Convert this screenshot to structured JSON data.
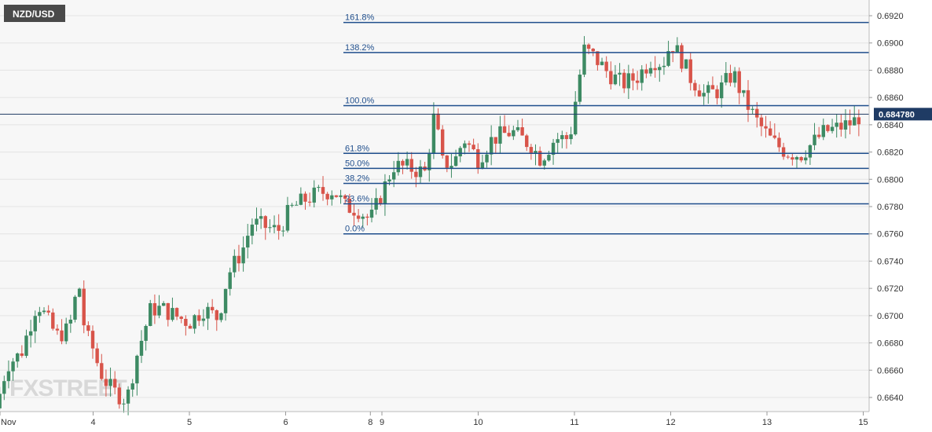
{
  "chart_data": {
    "type": "candlestick",
    "title": "NZD/USD",
    "current_price": "0.684780",
    "y_axis": {
      "ylim": [
        0.663,
        0.693
      ],
      "ticks": [
        "0.6640",
        "0.6660",
        "0.6680",
        "0.6700",
        "0.6720",
        "0.6740",
        "0.6760",
        "0.6780",
        "0.6800",
        "0.6820",
        "0.6840",
        "0.6860",
        "0.6880",
        "0.6900",
        "0.6920"
      ]
    },
    "x_axis": {
      "labels": [
        {
          "label": "Nov",
          "pos": 0.0
        },
        {
          "label": "4",
          "pos": 1.0
        },
        {
          "label": "5",
          "pos": 2.0
        },
        {
          "label": "6",
          "pos": 3.0
        },
        {
          "label": "8",
          "pos": 3.88
        },
        {
          "label": "9",
          "pos": 4.0
        },
        {
          "label": "10",
          "pos": 5.0
        },
        {
          "label": "11",
          "pos": 6.0
        },
        {
          "label": "12",
          "pos": 7.0
        },
        {
          "label": "13",
          "pos": 8.0
        },
        {
          "label": "15",
          "pos": 9.0
        }
      ]
    },
    "fibonacci": {
      "start_pos": 3.6,
      "levels": [
        {
          "label": "161.8%",
          "price": 0.6915
        },
        {
          "label": "138.2%",
          "price": 0.6893
        },
        {
          "label": "100.0%",
          "price": 0.6854
        },
        {
          "label": "61.8%",
          "price": 0.6819
        },
        {
          "label": "50.0%",
          "price": 0.6808
        },
        {
          "label": "38.2%",
          "price": 0.6797
        },
        {
          "label": "23.6%",
          "price": 0.6782
        },
        {
          "label": "0.0%",
          "price": 0.676
        }
      ]
    },
    "price_line": 0.68478,
    "colors": {
      "up": "#3d8a63",
      "down": "#d8544a",
      "fib": "#1f4e8c",
      "price_label_bg": "#1f3b64",
      "title_bg": "#4a4a4a"
    },
    "watermark": "FXSTREET",
    "anchors": [
      [
        0.0,
        0.6632
      ],
      [
        0.05,
        0.665
      ],
      [
        0.12,
        0.6665
      ],
      [
        0.25,
        0.6672
      ],
      [
        0.42,
        0.671
      ],
      [
        0.5,
        0.67
      ],
      [
        0.62,
        0.6685
      ],
      [
        0.75,
        0.669
      ],
      [
        0.85,
        0.6725
      ],
      [
        0.92,
        0.6685
      ],
      [
        0.98,
        0.668
      ],
      [
        1.02,
        0.667
      ],
      [
        1.1,
        0.6655
      ],
      [
        1.2,
        0.6645
      ],
      [
        1.35,
        0.6638
      ],
      [
        1.45,
        0.667
      ],
      [
        1.6,
        0.6705
      ],
      [
        1.72,
        0.6705
      ],
      [
        1.85,
        0.67
      ],
      [
        2.0,
        0.6695
      ],
      [
        2.15,
        0.6705
      ],
      [
        2.3,
        0.6698
      ],
      [
        2.4,
        0.673
      ],
      [
        2.55,
        0.6748
      ],
      [
        2.65,
        0.6768
      ],
      [
        2.8,
        0.6765
      ],
      [
        2.92,
        0.6762
      ],
      [
        3.05,
        0.6778
      ],
      [
        3.2,
        0.6785
      ],
      [
        3.35,
        0.679
      ],
      [
        3.5,
        0.6792
      ],
      [
        3.62,
        0.678
      ],
      [
        3.75,
        0.6778
      ],
      [
        3.88,
        0.677
      ],
      [
        4.0,
        0.679
      ],
      [
        4.12,
        0.681
      ],
      [
        4.3,
        0.6808
      ],
      [
        4.45,
        0.6805
      ],
      [
        4.55,
        0.685
      ],
      [
        4.62,
        0.6812
      ],
      [
        4.75,
        0.6812
      ],
      [
        4.85,
        0.683
      ],
      [
        5.0,
        0.6815
      ],
      [
        5.15,
        0.683
      ],
      [
        5.35,
        0.6835
      ],
      [
        5.55,
        0.6825
      ],
      [
        5.65,
        0.6815
      ],
      [
        5.8,
        0.683
      ],
      [
        5.95,
        0.683
      ],
      [
        6.02,
        0.6862
      ],
      [
        6.1,
        0.6895
      ],
      [
        6.2,
        0.689
      ],
      [
        6.35,
        0.6878
      ],
      [
        6.5,
        0.687
      ],
      [
        6.65,
        0.6875
      ],
      [
        6.8,
        0.6888
      ],
      [
        6.92,
        0.6885
      ],
      [
        7.0,
        0.69
      ],
      [
        7.1,
        0.689
      ],
      [
        7.2,
        0.6875
      ],
      [
        7.35,
        0.6862
      ],
      [
        7.5,
        0.6865
      ],
      [
        7.65,
        0.6878
      ],
      [
        7.75,
        0.686
      ],
      [
        7.9,
        0.6842
      ],
      [
        8.05,
        0.6828
      ],
      [
        8.2,
        0.682
      ],
      [
        8.35,
        0.6818
      ],
      [
        8.45,
        0.6825
      ],
      [
        8.6,
        0.6835
      ],
      [
        8.75,
        0.6838
      ],
      [
        8.9,
        0.6842
      ],
      [
        8.98,
        0.6848
      ]
    ]
  }
}
